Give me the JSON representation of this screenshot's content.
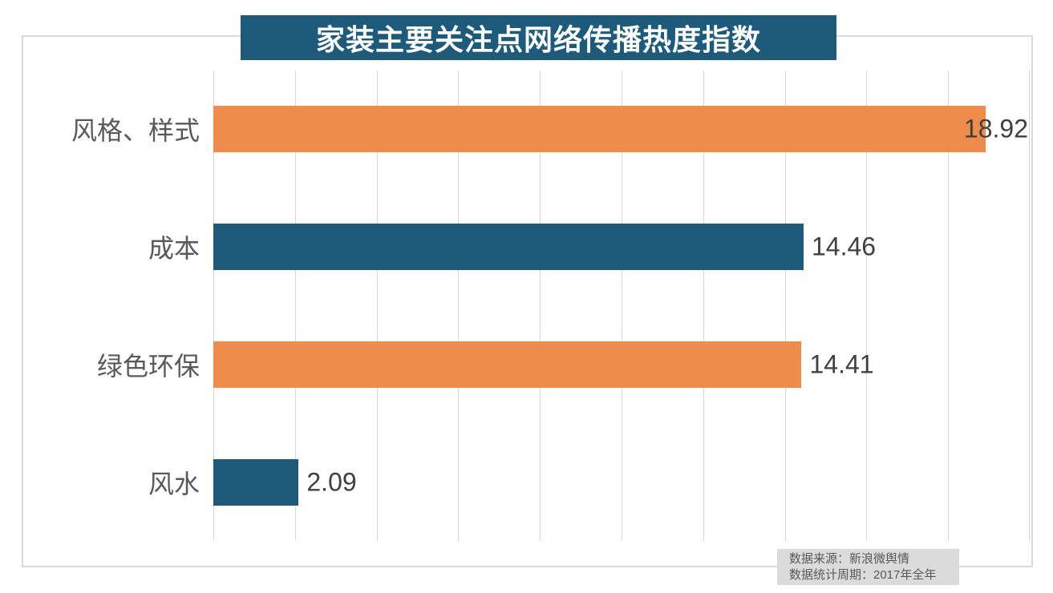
{
  "title": {
    "text": "家装主要关注点网络传播热度指数",
    "bg_color": "#1E5A7A",
    "text_color": "#FFFFFF"
  },
  "chart_data": {
    "type": "bar",
    "orientation": "horizontal",
    "title": "家装主要关注点网络传播热度指数",
    "categories": [
      "风格、样式",
      "成本",
      "绿色环保",
      "风水"
    ],
    "values": [
      18.92,
      14.46,
      14.41,
      2.09
    ],
    "value_labels": [
      "18.92",
      "14.46",
      "14.41",
      "2.09"
    ],
    "bar_colors": [
      "#EE8C4A",
      "#1E5A7A",
      "#EE8C4A",
      "#1E5A7A"
    ],
    "xlim": [
      0,
      20
    ],
    "gridline_step": 2,
    "grid": true,
    "axis_tick_labels_visible": false,
    "legend": "none"
  },
  "source": {
    "line1": "数据来源：新浪微舆情",
    "line2": "数据统计周期：2017年全年",
    "bg_color": "#DBDBDB",
    "text_color": "#595959"
  },
  "colors": {
    "orange": "#EE8C4A",
    "teal": "#1E5A7A",
    "gridline": "#D9D9D9",
    "frame_border": "#DBDBDB",
    "category_label": "#595959",
    "value_label": "#404040"
  }
}
